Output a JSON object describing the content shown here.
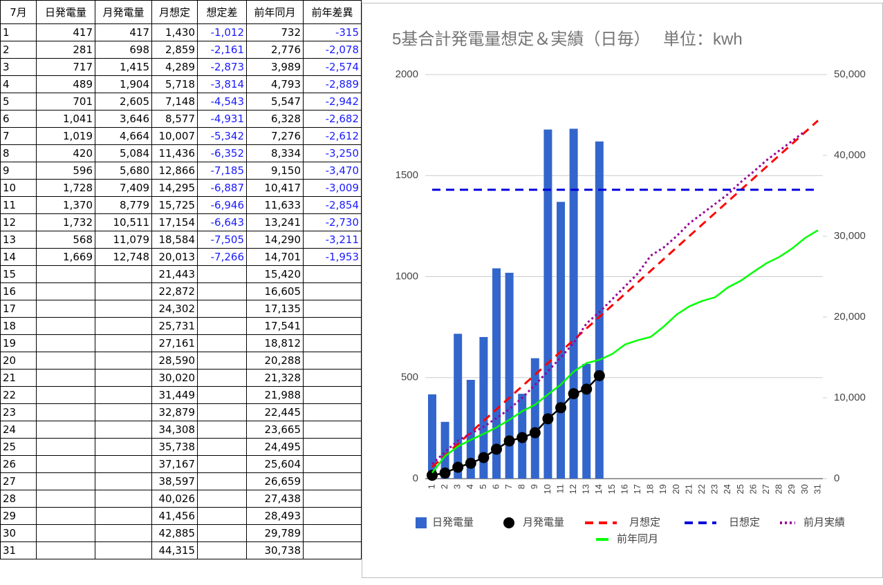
{
  "table": {
    "header": [
      "7月",
      "日発電量",
      "月発電量",
      "月想定",
      "想定差",
      "前年同月",
      "前年差異"
    ],
    "rows": [
      [
        "1",
        "417",
        "417",
        "1,430",
        "-1,012",
        "732",
        "-315"
      ],
      [
        "2",
        "281",
        "698",
        "2,859",
        "-2,161",
        "2,776",
        "-2,078"
      ],
      [
        "3",
        "717",
        "1,415",
        "4,289",
        "-2,873",
        "3,989",
        "-2,574"
      ],
      [
        "4",
        "489",
        "1,904",
        "5,718",
        "-3,814",
        "4,793",
        "-2,889"
      ],
      [
        "5",
        "701",
        "2,605",
        "7,148",
        "-4,543",
        "5,547",
        "-2,942"
      ],
      [
        "6",
        "1,041",
        "3,646",
        "8,577",
        "-4,931",
        "6,328",
        "-2,682"
      ],
      [
        "7",
        "1,019",
        "4,664",
        "10,007",
        "-5,342",
        "7,276",
        "-2,612"
      ],
      [
        "8",
        "420",
        "5,084",
        "11,436",
        "-6,352",
        "8,334",
        "-3,250"
      ],
      [
        "9",
        "596",
        "5,680",
        "12,866",
        "-7,185",
        "9,150",
        "-3,470"
      ],
      [
        "10",
        "1,728",
        "7,409",
        "14,295",
        "-6,887",
        "10,417",
        "-3,009"
      ],
      [
        "11",
        "1,370",
        "8,779",
        "15,725",
        "-6,946",
        "11,633",
        "-2,854"
      ],
      [
        "12",
        "1,732",
        "10,511",
        "17,154",
        "-6,643",
        "13,241",
        "-2,730"
      ],
      [
        "13",
        "568",
        "11,079",
        "18,584",
        "-7,505",
        "14,290",
        "-3,211"
      ],
      [
        "14",
        "1,669",
        "12,748",
        "20,013",
        "-7,266",
        "14,701",
        "-1,953"
      ],
      [
        "15",
        null,
        null,
        "21,443",
        null,
        "15,420",
        null
      ],
      [
        "16",
        null,
        null,
        "22,872",
        null,
        "16,605",
        null
      ],
      [
        "17",
        null,
        null,
        "24,302",
        null,
        "17,135",
        null
      ],
      [
        "18",
        null,
        null,
        "25,731",
        null,
        "17,541",
        null
      ],
      [
        "19",
        null,
        null,
        "27,161",
        null,
        "18,812",
        null
      ],
      [
        "20",
        null,
        null,
        "28,590",
        null,
        "20,288",
        null
      ],
      [
        "21",
        null,
        null,
        "30,020",
        null,
        "21,328",
        null
      ],
      [
        "22",
        null,
        null,
        "31,449",
        null,
        "21,988",
        null
      ],
      [
        "23",
        null,
        null,
        "32,879",
        null,
        "22,445",
        null
      ],
      [
        "24",
        null,
        null,
        "34,308",
        null,
        "23,665",
        null
      ],
      [
        "25",
        null,
        null,
        "35,738",
        null,
        "24,495",
        null
      ],
      [
        "26",
        null,
        null,
        "37,167",
        null,
        "25,604",
        null
      ],
      [
        "27",
        null,
        null,
        "38,597",
        null,
        "26,659",
        null
      ],
      [
        "28",
        null,
        null,
        "40,026",
        null,
        "27,438",
        null
      ],
      [
        "29",
        null,
        null,
        "41,456",
        null,
        "28,493",
        null
      ],
      [
        "30",
        null,
        null,
        "42,885",
        null,
        "29,789",
        null
      ],
      [
        "31",
        null,
        null,
        "44,315",
        null,
        "30,738",
        null
      ]
    ]
  },
  "chart_data": {
    "type": "combo",
    "title": "5基合計発電量想定＆実績（日毎）　 単位：kwh",
    "categories": [
      1,
      2,
      3,
      4,
      5,
      6,
      7,
      8,
      9,
      10,
      11,
      12,
      13,
      14,
      15,
      16,
      17,
      18,
      19,
      20,
      21,
      22,
      23,
      24,
      25,
      26,
      27,
      28,
      29,
      30,
      31
    ],
    "ylim": [
      0,
      2000
    ],
    "yticks": [
      0,
      500,
      1000,
      1500,
      2000
    ],
    "y2lim": [
      0,
      50000
    ],
    "y2ticks": [
      0,
      {
        "value": 10000,
        "label": "10,000"
      },
      {
        "value": 20000,
        "label": "20,000"
      },
      {
        "value": 30000,
        "label": "30,000"
      },
      {
        "value": 40000,
        "label": "40,000"
      },
      {
        "value": 50000,
        "label": "50,000"
      }
    ],
    "grid": true,
    "legend": "bottom",
    "series": [
      {
        "name": "日発電量",
        "type": "bar",
        "color": "#3366cc",
        "axis": "y",
        "values": [
          417,
          281,
          717,
          489,
          701,
          1041,
          1019,
          420,
          596,
          1728,
          1370,
          1732,
          568,
          1669,
          null,
          null,
          null,
          null,
          null,
          null,
          null,
          null,
          null,
          null,
          null,
          null,
          null,
          null,
          null,
          null,
          null
        ]
      },
      {
        "name": "月発電量",
        "type": "line",
        "style": "markers",
        "color": "#000000",
        "axis": "y2",
        "values": [
          417,
          698,
          1415,
          1904,
          2605,
          3646,
          4664,
          5084,
          5680,
          7409,
          8779,
          10511,
          11079,
          12748,
          null,
          null,
          null,
          null,
          null,
          null,
          null,
          null,
          null,
          null,
          null,
          null,
          null,
          null,
          null,
          null,
          null
        ]
      },
      {
        "name": "月想定",
        "type": "line",
        "style": "dashed",
        "color": "#ff0000",
        "axis": "y2",
        "values": [
          1430,
          2859,
          4289,
          5718,
          7148,
          8577,
          10007,
          11436,
          12866,
          14295,
          15725,
          17154,
          18584,
          20013,
          21443,
          22872,
          24302,
          25731,
          27161,
          28590,
          30020,
          31449,
          32879,
          34308,
          35738,
          37167,
          38597,
          40026,
          41456,
          42885,
          44315
        ]
      },
      {
        "name": "日想定",
        "type": "line",
        "style": "dashed",
        "color": "#0000dd",
        "axis": "y",
        "values": [
          1430,
          1430,
          1430,
          1430,
          1430,
          1430,
          1430,
          1430,
          1430,
          1430,
          1430,
          1430,
          1430,
          1430,
          1430,
          1430,
          1430,
          1430,
          1430,
          1430,
          1430,
          1430,
          1430,
          1430,
          1430,
          1430,
          1430,
          1430,
          1430,
          1430,
          1430
        ]
      },
      {
        "name": "前月実績",
        "type": "line",
        "style": "dotted",
        "color": "#990099",
        "axis": "y2",
        "values": [
          1800,
          3300,
          4700,
          5600,
          6400,
          7500,
          8600,
          10000,
          11600,
          13300,
          15000,
          16800,
          19200,
          20600,
          22200,
          23800,
          25400,
          27600,
          28600,
          30000,
          31600,
          32800,
          34000,
          35200,
          36700,
          38000,
          39400,
          40600,
          41800,
          43000,
          null
        ]
      },
      {
        "name": "前年同月",
        "type": "line",
        "style": "solid",
        "color": "#00ff00",
        "axis": "y2",
        "values": [
          732,
          2776,
          3989,
          4793,
          5547,
          6328,
          7276,
          8334,
          9150,
          10417,
          11633,
          13241,
          14290,
          14701,
          15420,
          16605,
          17135,
          17541,
          18812,
          20288,
          21328,
          21988,
          22445,
          23665,
          24495,
          25604,
          26659,
          27438,
          28493,
          29789,
          30738
        ]
      }
    ]
  }
}
